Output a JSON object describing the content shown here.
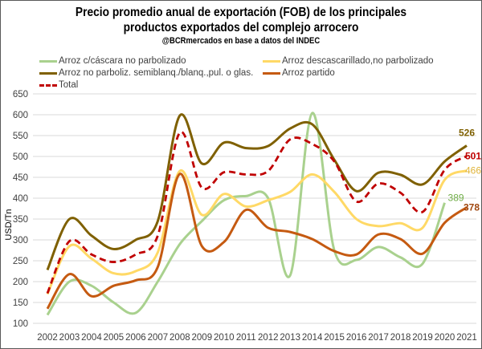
{
  "chart_data": {
    "type": "line",
    "title": "Precio promedio anual de exportación (FOB) de los principales",
    "title_line2": "productos exportados del complejo arrocero",
    "subtitle": "@BCRmercados en base a datos del INDEC",
    "xlabel": "",
    "ylabel": "USD/Tn",
    "ylim": [
      100,
      650
    ],
    "yticks": [
      100,
      150,
      200,
      250,
      300,
      350,
      400,
      450,
      500,
      550,
      600,
      650
    ],
    "grid": true,
    "legend_placement": "top",
    "categories": [
      "2002",
      "2003",
      "2004",
      "2005",
      "2006",
      "2007",
      "2008",
      "2009",
      "2010",
      "2011",
      "2012",
      "2013",
      "2014",
      "2015",
      "2016",
      "2017",
      "2018",
      "2019",
      "2020",
      "2021"
    ],
    "series": [
      {
        "name": "Arroz c/cáscara no parbolizado",
        "color": "#a9d18e",
        "dashed": false,
        "end_label": "389",
        "values": [
          120,
          200,
          190,
          150,
          125,
          200,
          290,
          345,
          395,
          405,
          400,
          215,
          604,
          275,
          252,
          283,
          258,
          243,
          389,
          null
        ]
      },
      {
        "name": "Arroz descascarillado,no parbolizado",
        "color": "#ffd966",
        "dashed": false,
        "end_label": "466",
        "values": [
          170,
          285,
          255,
          220,
          225,
          270,
          465,
          360,
          410,
          380,
          395,
          415,
          457,
          415,
          350,
          333,
          340,
          329,
          444,
          466
        ]
      },
      {
        "name": "Arroz no parboliz. semiblanq./blanq.,pul. o glas.",
        "color": "#7f6000",
        "dashed": false,
        "end_label": "526",
        "values": [
          228,
          350,
          310,
          278,
          300,
          345,
          598,
          483,
          533,
          520,
          525,
          567,
          577,
          492,
          417,
          461,
          456,
          433,
          488,
          526
        ]
      },
      {
        "name": "Arroz partido",
        "color": "#c55a11",
        "dashed": false,
        "end_label": "378",
        "values": [
          135,
          218,
          165,
          190,
          203,
          235,
          458,
          285,
          295,
          372,
          329,
          319,
          302,
          273,
          265,
          313,
          302,
          267,
          341,
          378
        ]
      },
      {
        "name": "Total",
        "color": "#c00000",
        "dashed": true,
        "end_label": "501",
        "values": [
          172,
          297,
          265,
          247,
          265,
          310,
          557,
          425,
          462,
          457,
          465,
          541,
          530,
          488,
          392,
          435,
          413,
          367,
          468,
          501
        ]
      }
    ]
  }
}
